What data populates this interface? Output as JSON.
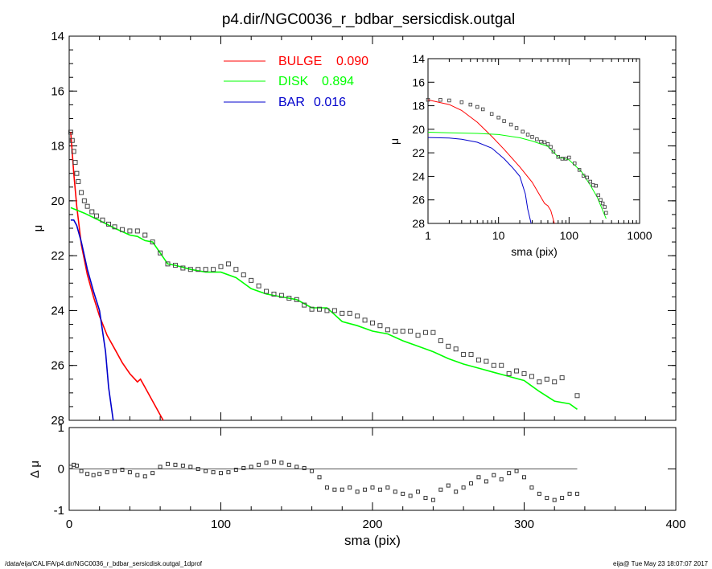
{
  "title": "p4.dir/NGC0036_r_bdbar_sersicdisk.outgal",
  "footer": {
    "path": "/data/eija/CALIFA/p4.dir/NGC0036_r_bdbar_sersicdisk.outgal_1dprof",
    "user_time": "eija@  Tue May 23 18:07:07 2017"
  },
  "legend": [
    {
      "label": "BULGE",
      "value": "0.090",
      "color": "#ff0000"
    },
    {
      "label": "DISK",
      "value": "0.894",
      "color": "#00ff00"
    },
    {
      "label": "BAR",
      "value": "0.016",
      "color": "#0000cc"
    }
  ],
  "chart_data": [
    {
      "type": "line",
      "panel": "main",
      "xlabel": "sma (pix)",
      "ylabel": "μ",
      "xlim": [
        0,
        400
      ],
      "ylim": [
        28,
        14
      ],
      "x_ticks": [
        "0",
        "100",
        "200",
        "300",
        "400"
      ],
      "y_ticks": [
        "14",
        "16",
        "18",
        "20",
        "22",
        "24",
        "26",
        "28"
      ],
      "series": [
        {
          "name": "BULGE",
          "color": "#ff0000",
          "x": [
            1,
            3,
            5,
            8,
            12,
            16,
            20,
            25,
            30,
            35,
            40,
            45,
            47,
            50,
            55,
            60,
            62
          ],
          "y": [
            17.5,
            19.0,
            20.2,
            21.6,
            22.7,
            23.5,
            24.2,
            24.9,
            25.4,
            25.9,
            26.3,
            26.6,
            26.5,
            26.8,
            27.3,
            27.8,
            28.0
          ]
        },
        {
          "name": "DISK",
          "color": "#00ff00",
          "x": [
            1,
            10,
            20,
            30,
            40,
            45,
            50,
            55,
            60,
            65,
            70,
            80,
            90,
            100,
            110,
            120,
            130,
            140,
            150,
            160,
            170,
            175,
            180,
            190,
            200,
            210,
            220,
            230,
            240,
            250,
            260,
            270,
            280,
            290,
            300,
            305,
            310,
            320,
            330,
            335
          ],
          "y": [
            20.25,
            20.45,
            20.72,
            21.0,
            21.25,
            21.3,
            21.45,
            21.5,
            21.9,
            22.3,
            22.35,
            22.5,
            22.6,
            22.6,
            22.8,
            23.2,
            23.4,
            23.5,
            23.6,
            23.9,
            23.9,
            24.15,
            24.4,
            24.55,
            24.75,
            24.85,
            25.1,
            25.3,
            25.5,
            25.75,
            25.95,
            26.1,
            26.25,
            26.4,
            26.55,
            26.75,
            26.95,
            27.3,
            27.4,
            27.6
          ]
        },
        {
          "name": "BAR",
          "color": "#0000cc",
          "x": [
            1,
            3,
            5,
            8,
            12,
            16,
            20,
            24,
            26,
            28,
            29
          ],
          "y": [
            20.7,
            20.7,
            20.9,
            21.5,
            22.5,
            23.3,
            24.0,
            25.5,
            26.8,
            27.6,
            28.0
          ]
        }
      ],
      "data_points": {
        "name": "data",
        "x": [
          1,
          2,
          3,
          4,
          5,
          6,
          8,
          10,
          12,
          15,
          18,
          22,
          26,
          30,
          35,
          40,
          45,
          50,
          55,
          60,
          65,
          70,
          75,
          80,
          85,
          90,
          95,
          100,
          105,
          110,
          115,
          120,
          125,
          130,
          135,
          140,
          145,
          150,
          155,
          160,
          165,
          170,
          175,
          180,
          185,
          190,
          195,
          200,
          205,
          210,
          215,
          220,
          225,
          230,
          235,
          240,
          245,
          250,
          255,
          260,
          265,
          270,
          275,
          280,
          285,
          290,
          295,
          300,
          305,
          310,
          315,
          320,
          325,
          335
        ],
        "y": [
          17.5,
          17.8,
          18.2,
          18.6,
          19.0,
          19.3,
          19.7,
          20.0,
          20.2,
          20.4,
          20.55,
          20.7,
          20.85,
          20.95,
          21.05,
          21.1,
          21.1,
          21.25,
          21.5,
          21.9,
          22.3,
          22.35,
          22.45,
          22.5,
          22.5,
          22.5,
          22.5,
          22.4,
          22.3,
          22.5,
          22.7,
          22.9,
          23.1,
          23.3,
          23.4,
          23.45,
          23.55,
          23.6,
          23.8,
          23.95,
          23.95,
          24.0,
          24.0,
          24.1,
          24.1,
          24.2,
          24.35,
          24.45,
          24.55,
          24.7,
          24.75,
          24.75,
          24.75,
          24.9,
          24.8,
          24.8,
          25.1,
          25.3,
          25.4,
          25.6,
          25.6,
          25.8,
          25.85,
          26.0,
          26.0,
          26.3,
          26.2,
          26.3,
          26.4,
          26.6,
          26.5,
          26.6,
          26.45,
          27.1
        ]
      }
    },
    {
      "type": "scatter",
      "panel": "residual",
      "xlabel": "sma (pix)",
      "ylabel": "Δ μ",
      "xlim": [
        0,
        400
      ],
      "ylim": [
        -1,
        1
      ],
      "y_ticks": [
        "-1",
        "0",
        "1"
      ],
      "reference_line": {
        "y": 0,
        "x_end": 335
      },
      "x": [
        1,
        3,
        5,
        8,
        12,
        16,
        20,
        25,
        30,
        35,
        40,
        45,
        50,
        55,
        60,
        65,
        70,
        75,
        80,
        85,
        90,
        95,
        100,
        105,
        110,
        115,
        120,
        125,
        130,
        135,
        140,
        145,
        150,
        155,
        160,
        165,
        170,
        175,
        180,
        185,
        190,
        195,
        200,
        205,
        210,
        215,
        220,
        225,
        230,
        235,
        240,
        245,
        250,
        255,
        260,
        265,
        270,
        275,
        280,
        285,
        290,
        295,
        300,
        305,
        310,
        315,
        320,
        325,
        330,
        335
      ],
      "y": [
        0.05,
        0.1,
        0.08,
        -0.05,
        -0.12,
        -0.15,
        -0.12,
        -0.08,
        -0.05,
        -0.02,
        -0.08,
        -0.15,
        -0.18,
        -0.1,
        0.05,
        0.12,
        0.1,
        0.08,
        0.05,
        0.0,
        -0.05,
        -0.08,
        -0.1,
        -0.08,
        -0.02,
        0.02,
        0.05,
        0.1,
        0.15,
        0.18,
        0.15,
        0.1,
        0.05,
        0.02,
        -0.05,
        -0.2,
        -0.45,
        -0.5,
        -0.5,
        -0.45,
        -0.55,
        -0.5,
        -0.45,
        -0.5,
        -0.45,
        -0.55,
        -0.6,
        -0.65,
        -0.55,
        -0.7,
        -0.75,
        -0.5,
        -0.4,
        -0.55,
        -0.45,
        -0.35,
        -0.2,
        -0.3,
        -0.15,
        -0.25,
        -0.1,
        -0.05,
        -0.2,
        -0.45,
        -0.6,
        -0.7,
        -0.75,
        -0.7,
        -0.6,
        -0.6
      ]
    },
    {
      "type": "line",
      "panel": "inset",
      "xlabel": "sma (pix)",
      "ylabel": "μ",
      "xscale": "log",
      "xlim": [
        1,
        1000
      ],
      "ylim": [
        28,
        14
      ],
      "x_ticks": [
        "1",
        "10",
        "100",
        "1000"
      ],
      "y_ticks": [
        "14",
        "16",
        "18",
        "20",
        "22",
        "24",
        "26",
        "28"
      ],
      "series": [
        {
          "name": "BULGE",
          "color": "#ff0000",
          "x": [
            1,
            2,
            3,
            5,
            8,
            12,
            20,
            30,
            45,
            50,
            55,
            62
          ],
          "y": [
            17.5,
            17.9,
            18.4,
            19.4,
            20.6,
            21.7,
            23.2,
            24.5,
            26.3,
            26.5,
            26.9,
            28.0
          ]
        },
        {
          "name": "DISK",
          "color": "#00ff00",
          "x": [
            1,
            2,
            5,
            10,
            20,
            30,
            50,
            70,
            100,
            150,
            200,
            250,
            335
          ],
          "y": [
            20.25,
            20.3,
            20.35,
            20.45,
            20.72,
            21.0,
            21.45,
            22.35,
            22.6,
            23.6,
            24.75,
            25.75,
            27.6
          ]
        },
        {
          "name": "BAR",
          "color": "#0000cc",
          "x": [
            1,
            2,
            3,
            5,
            8,
            12,
            16,
            20,
            24,
            26,
            29
          ],
          "y": [
            20.7,
            20.75,
            20.85,
            21.1,
            21.6,
            22.5,
            23.3,
            24.0,
            25.5,
            26.8,
            28.0
          ]
        }
      ],
      "data_points": {
        "x": [
          1,
          1.5,
          2,
          3,
          4,
          5,
          6,
          8,
          10,
          12,
          15,
          18,
          22,
          26,
          30,
          35,
          40,
          45,
          50,
          55,
          60,
          70,
          80,
          90,
          100,
          120,
          140,
          160,
          180,
          200,
          220,
          240,
          260,
          280,
          300,
          320,
          335
        ],
        "y": [
          17.5,
          17.5,
          17.55,
          17.7,
          17.9,
          18.1,
          18.3,
          18.7,
          19.0,
          19.3,
          19.6,
          19.9,
          20.2,
          20.45,
          20.65,
          20.85,
          21.05,
          21.1,
          21.25,
          21.5,
          21.9,
          22.35,
          22.5,
          22.5,
          22.4,
          22.9,
          23.45,
          23.95,
          24.1,
          24.45,
          24.75,
          24.8,
          25.6,
          26.0,
          26.3,
          26.6,
          27.1
        ]
      }
    }
  ]
}
